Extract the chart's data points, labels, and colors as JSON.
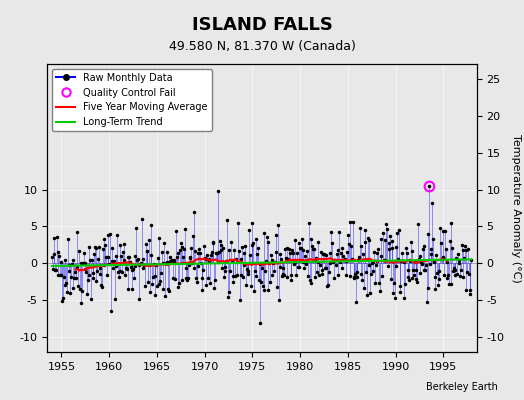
{
  "title": "ISLAND FALLS",
  "subtitle": "49.580 N, 81.370 W (Canada)",
  "credit": "Berkeley Earth",
  "ylabel_right": "Temperature Anomaly (°C)",
  "xlim": [
    1953.5,
    1998.5
  ],
  "ylim": [
    -12,
    27
  ],
  "yticks_left": [
    -10,
    -5,
    0,
    5,
    10
  ],
  "yticks_right": [
    25,
    20,
    15,
    10,
    5,
    0,
    -5,
    -10
  ],
  "xticks": [
    1955,
    1960,
    1965,
    1970,
    1975,
    1980,
    1985,
    1990,
    1995
  ],
  "seed": 42,
  "bg_color": "#e8e8e8",
  "plot_bg_color": "#e8e8e8",
  "line_color": "#0000ff",
  "ma_color": "#ff0000",
  "trend_color": "#00cc00",
  "qc_color": "#ff00ff",
  "bar_color": "#0000ff",
  "dot_color": "#000000"
}
